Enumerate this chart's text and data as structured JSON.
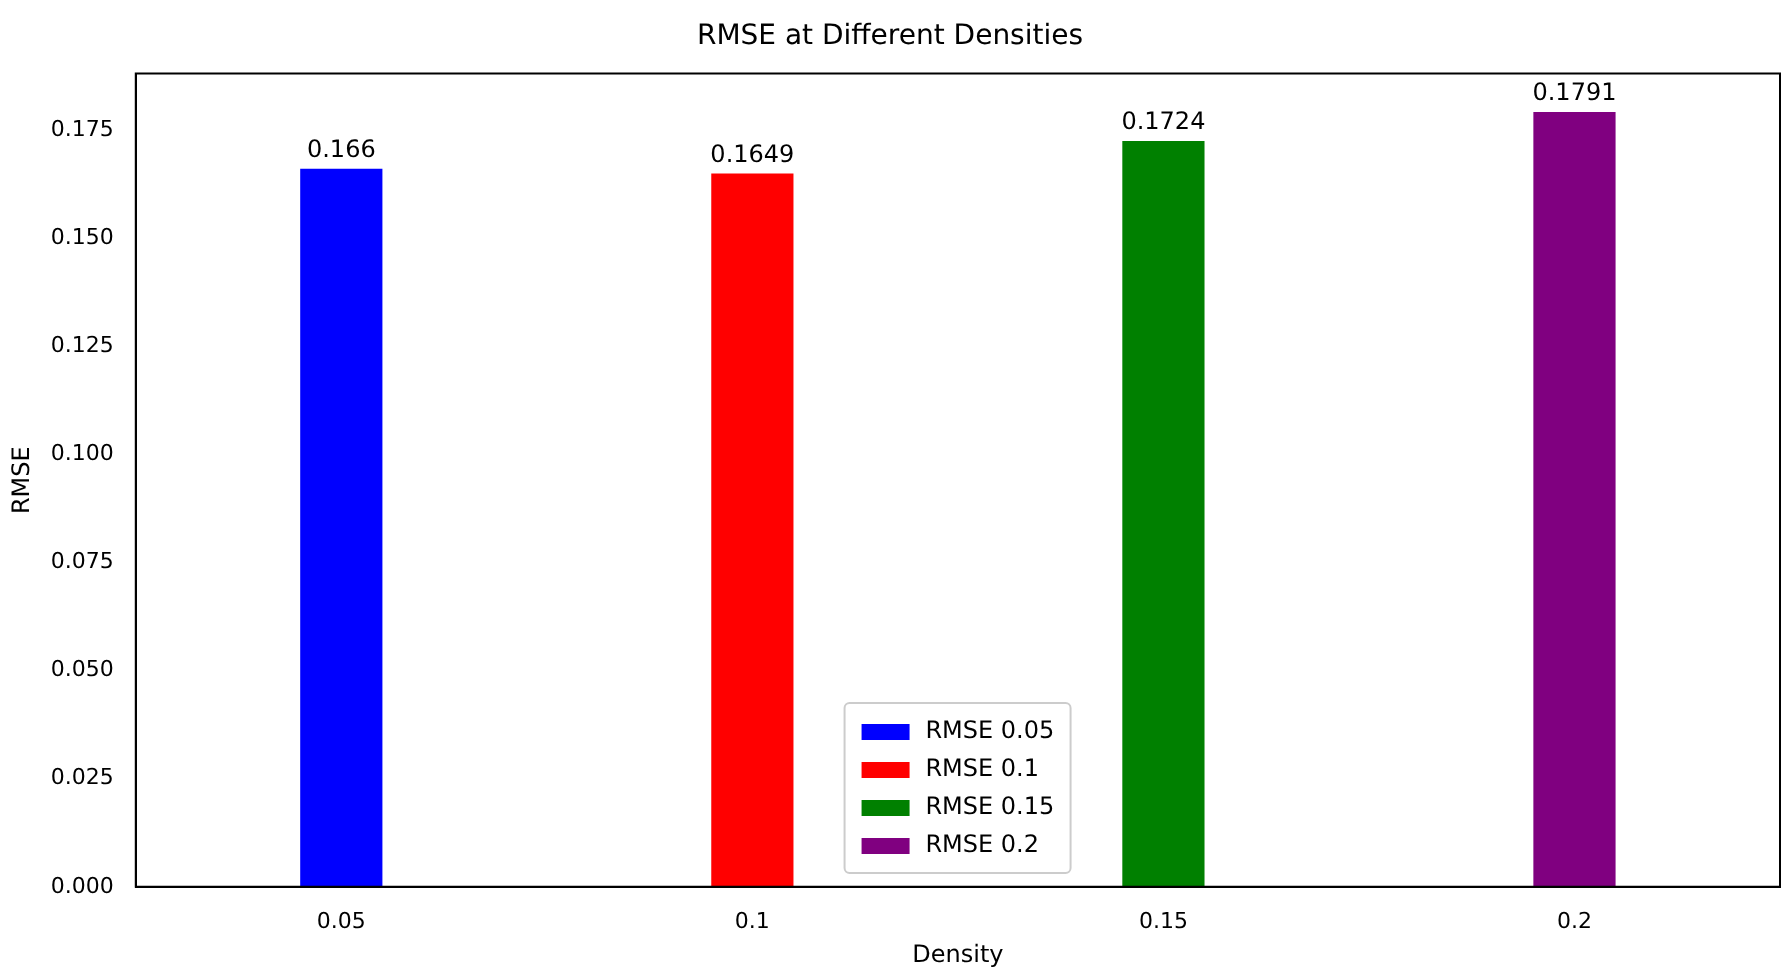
{
  "chart_data": {
    "type": "bar",
    "title": "RMSE at Different Densities",
    "xlabel": "Density",
    "ylabel": "RMSE",
    "categories": [
      "0.05",
      "0.1",
      "0.15",
      "0.2"
    ],
    "series": [
      {
        "name": "RMSE 0.05",
        "color": "#0000ff",
        "values": [
          0.166,
          null,
          null,
          null
        ]
      },
      {
        "name": "RMSE 0.1",
        "color": "#ff0000",
        "values": [
          null,
          0.1649,
          null,
          null
        ]
      },
      {
        "name": "RMSE 0.15",
        "color": "#008000",
        "values": [
          null,
          null,
          0.1724,
          null
        ]
      },
      {
        "name": "RMSE 0.2",
        "color": "#800080",
        "values": [
          null,
          null,
          null,
          0.1791
        ]
      }
    ],
    "ylim": [
      0,
      0.188
    ],
    "yticks": [
      {
        "value": 0,
        "label": "0.000"
      },
      {
        "value": 0.025,
        "label": "0.025"
      },
      {
        "value": 0.05,
        "label": "0.050"
      },
      {
        "value": 0.075,
        "label": "0.075"
      },
      {
        "value": 0.1,
        "label": "0.100"
      },
      {
        "value": 0.125,
        "label": "0.125"
      },
      {
        "value": 0.15,
        "label": "0.150"
      },
      {
        "value": 0.175,
        "label": "0.175"
      }
    ],
    "data_labels": true,
    "legend": "bottom",
    "grid": false
  }
}
